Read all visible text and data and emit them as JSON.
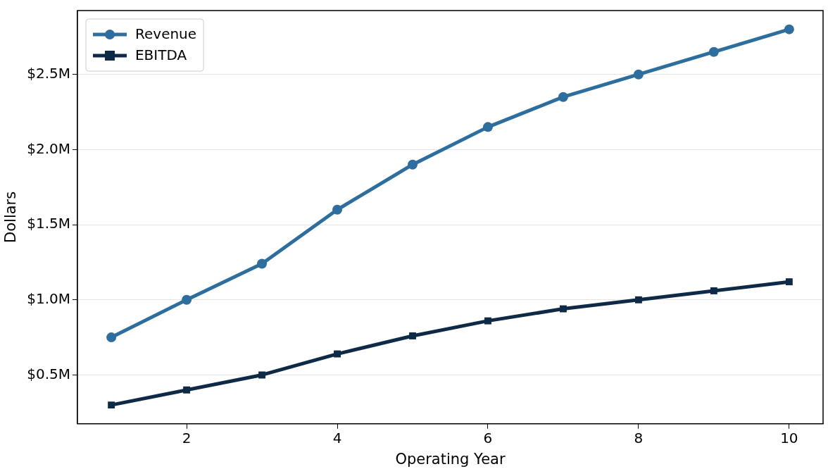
{
  "chart_data": {
    "type": "line",
    "xlabel": "Operating Year",
    "ylabel": "Dollars",
    "x": [
      1,
      2,
      3,
      4,
      5,
      6,
      7,
      8,
      9,
      10
    ],
    "series": [
      {
        "name": "Revenue",
        "color": "#2e6e9e",
        "marker": "circle",
        "values": [
          750000,
          1000000,
          1240000,
          1600000,
          1900000,
          2150000,
          2350000,
          2500000,
          2650000,
          2800000
        ]
      },
      {
        "name": "EBITDA",
        "color": "#0f2a47",
        "marker": "square",
        "values": [
          300000,
          400000,
          500000,
          640000,
          760000,
          860000,
          940000,
          1000000,
          1060000,
          1120000
        ]
      }
    ],
    "xlim": [
      0.55,
      10.45
    ],
    "xticks": [
      2,
      4,
      6,
      8,
      10
    ],
    "ylim": [
      175000,
      2925000
    ],
    "yticks": [
      {
        "value": 500000,
        "label": "$0.5M"
      },
      {
        "value": 1000000,
        "label": "$1.0M"
      },
      {
        "value": 1500000,
        "label": "$1.5M"
      },
      {
        "value": 2000000,
        "label": "$2.0M"
      },
      {
        "value": 2500000,
        "label": "$2.5M"
      }
    ],
    "grid": "y",
    "legend": "top left",
    "line_style": "solid"
  }
}
